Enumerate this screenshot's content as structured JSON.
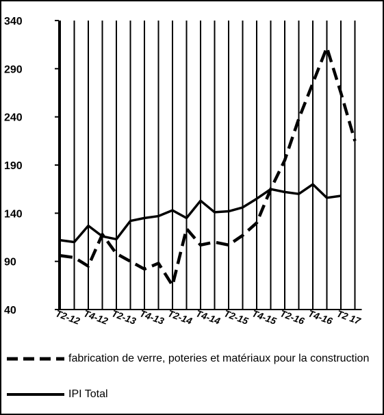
{
  "chart_data": {
    "type": "line",
    "categories": [
      null,
      "T2-12",
      null,
      "T4-12",
      null,
      "T2-13",
      null,
      "T4-13",
      null,
      "T2-14",
      null,
      "T4-14",
      null,
      "T2-15",
      null,
      "T4-15",
      null,
      "T2-16",
      null,
      "T4-16",
      null,
      "T2 17"
    ],
    "series": [
      {
        "name": "fabrication de verre, poteries et matériaux pour la construction",
        "color": "#000000",
        "dashed": true,
        "values": [
          96,
          94,
          85,
          118,
          98,
          90,
          82,
          88,
          65,
          124,
          107,
          110,
          107,
          117,
          130,
          165,
          195,
          238,
          275,
          312,
          265,
          215
        ]
      },
      {
        "name": "IPI Total",
        "color": "#000000",
        "dashed": false,
        "values": [
          112,
          110,
          127,
          116,
          113,
          132,
          135,
          137,
          143,
          135,
          153,
          141,
          142,
          146,
          155,
          165,
          162,
          160,
          170,
          156,
          158,
          null
        ]
      }
    ],
    "ylim": [
      40,
      340
    ],
    "yticks": [
      40,
      90,
      140,
      190,
      240,
      290,
      340
    ],
    "grid": true
  }
}
